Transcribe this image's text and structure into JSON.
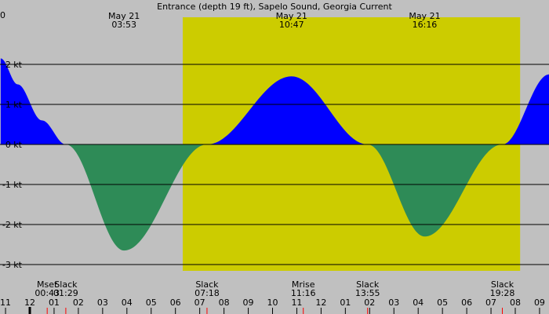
{
  "title": "Entrance (depth 19 ft), Sapelo Sound, Georgia Current",
  "colors": {
    "background": "#c0c0c0",
    "daylight": "#cccc00",
    "flood": "#0000ff",
    "ebb": "#2e8b57",
    "gridline": "#000000",
    "slack_tick": "#ff0000",
    "midnight_tick": "#000000"
  },
  "header_labels": [
    {
      "date": "May 21",
      "time": "03:53"
    },
    {
      "date": "May 21",
      "time": "10:47"
    },
    {
      "date": "May 21",
      "time": "16:16"
    }
  ],
  "corner_text": "0",
  "events": [
    {
      "label": "Mset",
      "time": "00:43"
    },
    {
      "label": "Slack",
      "time": "01:29"
    },
    {
      "label": "Slack",
      "time": "07:18"
    },
    {
      "label": "Mrise",
      "time": "11:16"
    },
    {
      "label": "Slack",
      "time": "13:55"
    },
    {
      "label": "Slack",
      "time": "19:28"
    }
  ],
  "hour_labels": [
    "11",
    "12",
    "01",
    "02",
    "03",
    "04",
    "05",
    "06",
    "07",
    "08",
    "09",
    "10",
    "11",
    "12",
    "01",
    "02",
    "03",
    "04",
    "05",
    "06",
    "07",
    "08",
    "09"
  ],
  "chart_data": {
    "type": "area",
    "title": "Entrance (depth 19 ft), Sapelo Sound, Georgia Current",
    "x_unit": "hours since midnight May 21",
    "xlim": [
      -1.2,
      21.4
    ],
    "ylim": [
      -3.15,
      2.3
    ],
    "y_ticks": [
      {
        "value": 2,
        "label": "2 kt"
      },
      {
        "value": 1,
        "label": "1 kt"
      },
      {
        "value": 0,
        "label": "0 kt"
      },
      {
        "value": -1,
        "label": "-1 kt"
      },
      {
        "value": -2,
        "label": "-2 kt"
      },
      {
        "value": -3,
        "label": "-3 kt"
      }
    ],
    "daylight_hours": [
      6.3,
      20.2
    ],
    "extremes": [
      {
        "time": "03:53",
        "hours": 3.883,
        "value": -2.65,
        "kind": "max ebb"
      },
      {
        "time": "10:47",
        "hours": 10.783,
        "value": 1.7,
        "kind": "max flood"
      },
      {
        "time": "16:16",
        "hours": 16.267,
        "value": -2.3,
        "kind": "max ebb"
      }
    ],
    "slack_hours": [
      1.483,
      7.3,
      13.917,
      19.467
    ],
    "series": [
      {
        "kind": "current",
        "points": [
          [
            -1.2,
            2.15
          ],
          [
            -0.5,
            1.5
          ],
          [
            0.5,
            0.6
          ],
          [
            1.483,
            0
          ],
          [
            3.883,
            -2.65
          ],
          [
            7.3,
            0
          ],
          [
            10.783,
            1.7
          ],
          [
            13.917,
            0
          ],
          [
            16.267,
            -2.3
          ],
          [
            19.467,
            0
          ],
          [
            21.4,
            1.75
          ]
        ]
      }
    ]
  }
}
